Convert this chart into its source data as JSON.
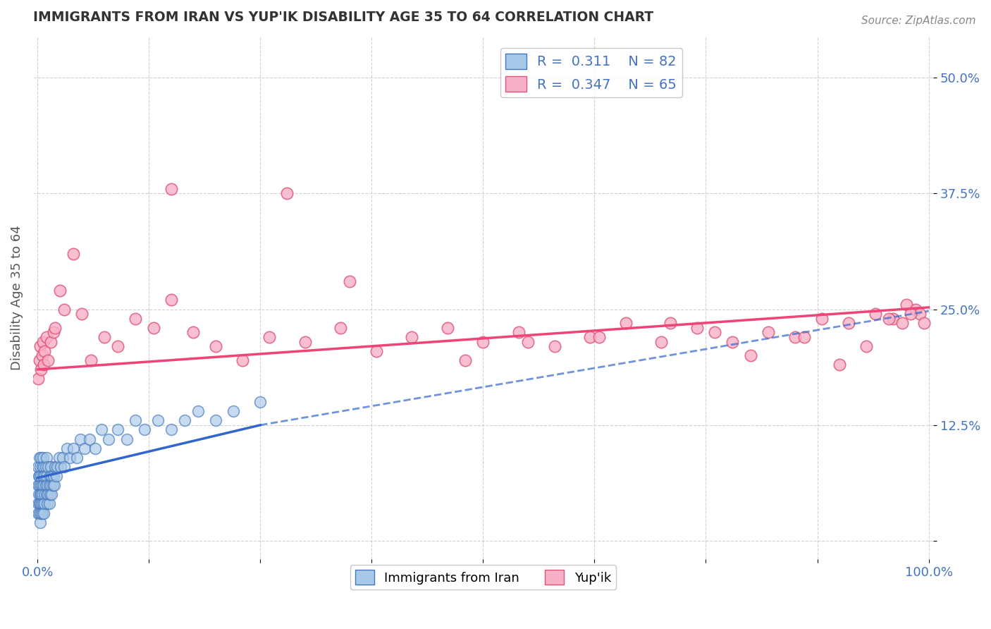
{
  "title": "IMMIGRANTS FROM IRAN VS YUP'IK DISABILITY AGE 35 TO 64 CORRELATION CHART",
  "source": "Source: ZipAtlas.com",
  "ylabel": "Disability Age 35 to 64",
  "xlim": [
    -0.005,
    1.005
  ],
  "ylim": [
    -0.02,
    0.545
  ],
  "xtick_positions": [
    0.0,
    0.125,
    0.25,
    0.375,
    0.5,
    0.625,
    0.75,
    0.875,
    1.0
  ],
  "xticklabels": [
    "0.0%",
    "",
    "",
    "",
    "",
    "",
    "",
    "",
    "100.0%"
  ],
  "ytick_positions": [
    0.0,
    0.125,
    0.25,
    0.375,
    0.5
  ],
  "yticklabels": [
    "",
    "12.5%",
    "25.0%",
    "37.5%",
    "50.0%"
  ],
  "iran_R": "0.311",
  "iran_N": "82",
  "yupik_R": "0.347",
  "yupik_N": "65",
  "iran_marker_facecolor": "#a8c8e8",
  "iran_marker_edgecolor": "#4477bb",
  "yupik_marker_facecolor": "#f8b0c8",
  "yupik_marker_edgecolor": "#dd5577",
  "iran_line_color": "#3366cc",
  "yupik_line_color": "#ee4477",
  "grid_color": "#cccccc",
  "title_color": "#333333",
  "axis_label_color": "#4472c4",
  "legend_iran_label": "Immigrants from Iran",
  "legend_yupik_label": "Yup'ik",
  "iran_x": [
    0.0005,
    0.001,
    0.001,
    0.001,
    0.0015,
    0.0015,
    0.002,
    0.002,
    0.002,
    0.0025,
    0.0025,
    0.003,
    0.003,
    0.003,
    0.003,
    0.0035,
    0.0035,
    0.004,
    0.004,
    0.004,
    0.0045,
    0.005,
    0.005,
    0.005,
    0.005,
    0.006,
    0.006,
    0.006,
    0.007,
    0.007,
    0.007,
    0.008,
    0.008,
    0.008,
    0.009,
    0.009,
    0.01,
    0.01,
    0.01,
    0.011,
    0.011,
    0.012,
    0.012,
    0.013,
    0.013,
    0.014,
    0.014,
    0.015,
    0.015,
    0.016,
    0.016,
    0.017,
    0.018,
    0.019,
    0.02,
    0.021,
    0.022,
    0.024,
    0.026,
    0.028,
    0.03,
    0.033,
    0.036,
    0.04,
    0.044,
    0.048,
    0.053,
    0.058,
    0.065,
    0.072,
    0.08,
    0.09,
    0.1,
    0.11,
    0.12,
    0.135,
    0.15,
    0.165,
    0.18,
    0.2,
    0.22,
    0.25
  ],
  "iran_y": [
    0.04,
    0.06,
    0.03,
    0.08,
    0.05,
    0.07,
    0.04,
    0.09,
    0.06,
    0.03,
    0.07,
    0.05,
    0.02,
    0.08,
    0.04,
    0.06,
    0.03,
    0.07,
    0.05,
    0.09,
    0.04,
    0.06,
    0.08,
    0.03,
    0.05,
    0.07,
    0.04,
    0.09,
    0.06,
    0.03,
    0.08,
    0.05,
    0.07,
    0.04,
    0.06,
    0.08,
    0.05,
    0.07,
    0.09,
    0.04,
    0.06,
    0.05,
    0.08,
    0.06,
    0.04,
    0.07,
    0.05,
    0.06,
    0.08,
    0.05,
    0.07,
    0.06,
    0.07,
    0.06,
    0.08,
    0.07,
    0.08,
    0.09,
    0.08,
    0.09,
    0.08,
    0.1,
    0.09,
    0.1,
    0.09,
    0.11,
    0.1,
    0.11,
    0.1,
    0.12,
    0.11,
    0.12,
    0.11,
    0.13,
    0.12,
    0.13,
    0.12,
    0.13,
    0.14,
    0.13,
    0.14,
    0.15
  ],
  "yupik_x": [
    0.001,
    0.002,
    0.003,
    0.004,
    0.005,
    0.006,
    0.007,
    0.008,
    0.01,
    0.012,
    0.015,
    0.018,
    0.02,
    0.025,
    0.03,
    0.04,
    0.05,
    0.06,
    0.075,
    0.09,
    0.11,
    0.13,
    0.15,
    0.175,
    0.2,
    0.23,
    0.26,
    0.3,
    0.34,
    0.38,
    0.42,
    0.46,
    0.5,
    0.54,
    0.58,
    0.62,
    0.66,
    0.7,
    0.74,
    0.78,
    0.82,
    0.85,
    0.88,
    0.91,
    0.94,
    0.96,
    0.975,
    0.985,
    0.99,
    0.995,
    0.15,
    0.28,
    0.35,
    0.48,
    0.55,
    0.63,
    0.71,
    0.76,
    0.8,
    0.86,
    0.9,
    0.93,
    0.955,
    0.97,
    0.98
  ],
  "yupik_y": [
    0.175,
    0.195,
    0.21,
    0.185,
    0.2,
    0.215,
    0.19,
    0.205,
    0.22,
    0.195,
    0.215,
    0.225,
    0.23,
    0.27,
    0.25,
    0.31,
    0.245,
    0.195,
    0.22,
    0.21,
    0.24,
    0.23,
    0.26,
    0.225,
    0.21,
    0.195,
    0.22,
    0.215,
    0.23,
    0.205,
    0.22,
    0.23,
    0.215,
    0.225,
    0.21,
    0.22,
    0.235,
    0.215,
    0.23,
    0.215,
    0.225,
    0.22,
    0.24,
    0.235,
    0.245,
    0.24,
    0.255,
    0.25,
    0.245,
    0.235,
    0.38,
    0.375,
    0.28,
    0.195,
    0.215,
    0.22,
    0.235,
    0.225,
    0.2,
    0.22,
    0.19,
    0.21,
    0.24,
    0.235,
    0.245
  ],
  "iran_trend_x0": 0.0,
  "iran_trend_x_solid_end": 0.25,
  "iran_trend_x_dashed_end": 1.0,
  "iran_trend_y0": 0.068,
  "iran_trend_y_solid_end": 0.125,
  "iran_trend_y_dashed_end": 0.248,
  "yupik_trend_x0": 0.0,
  "yupik_trend_x1": 1.0,
  "yupik_trend_y0": 0.185,
  "yupik_trend_y1": 0.252
}
